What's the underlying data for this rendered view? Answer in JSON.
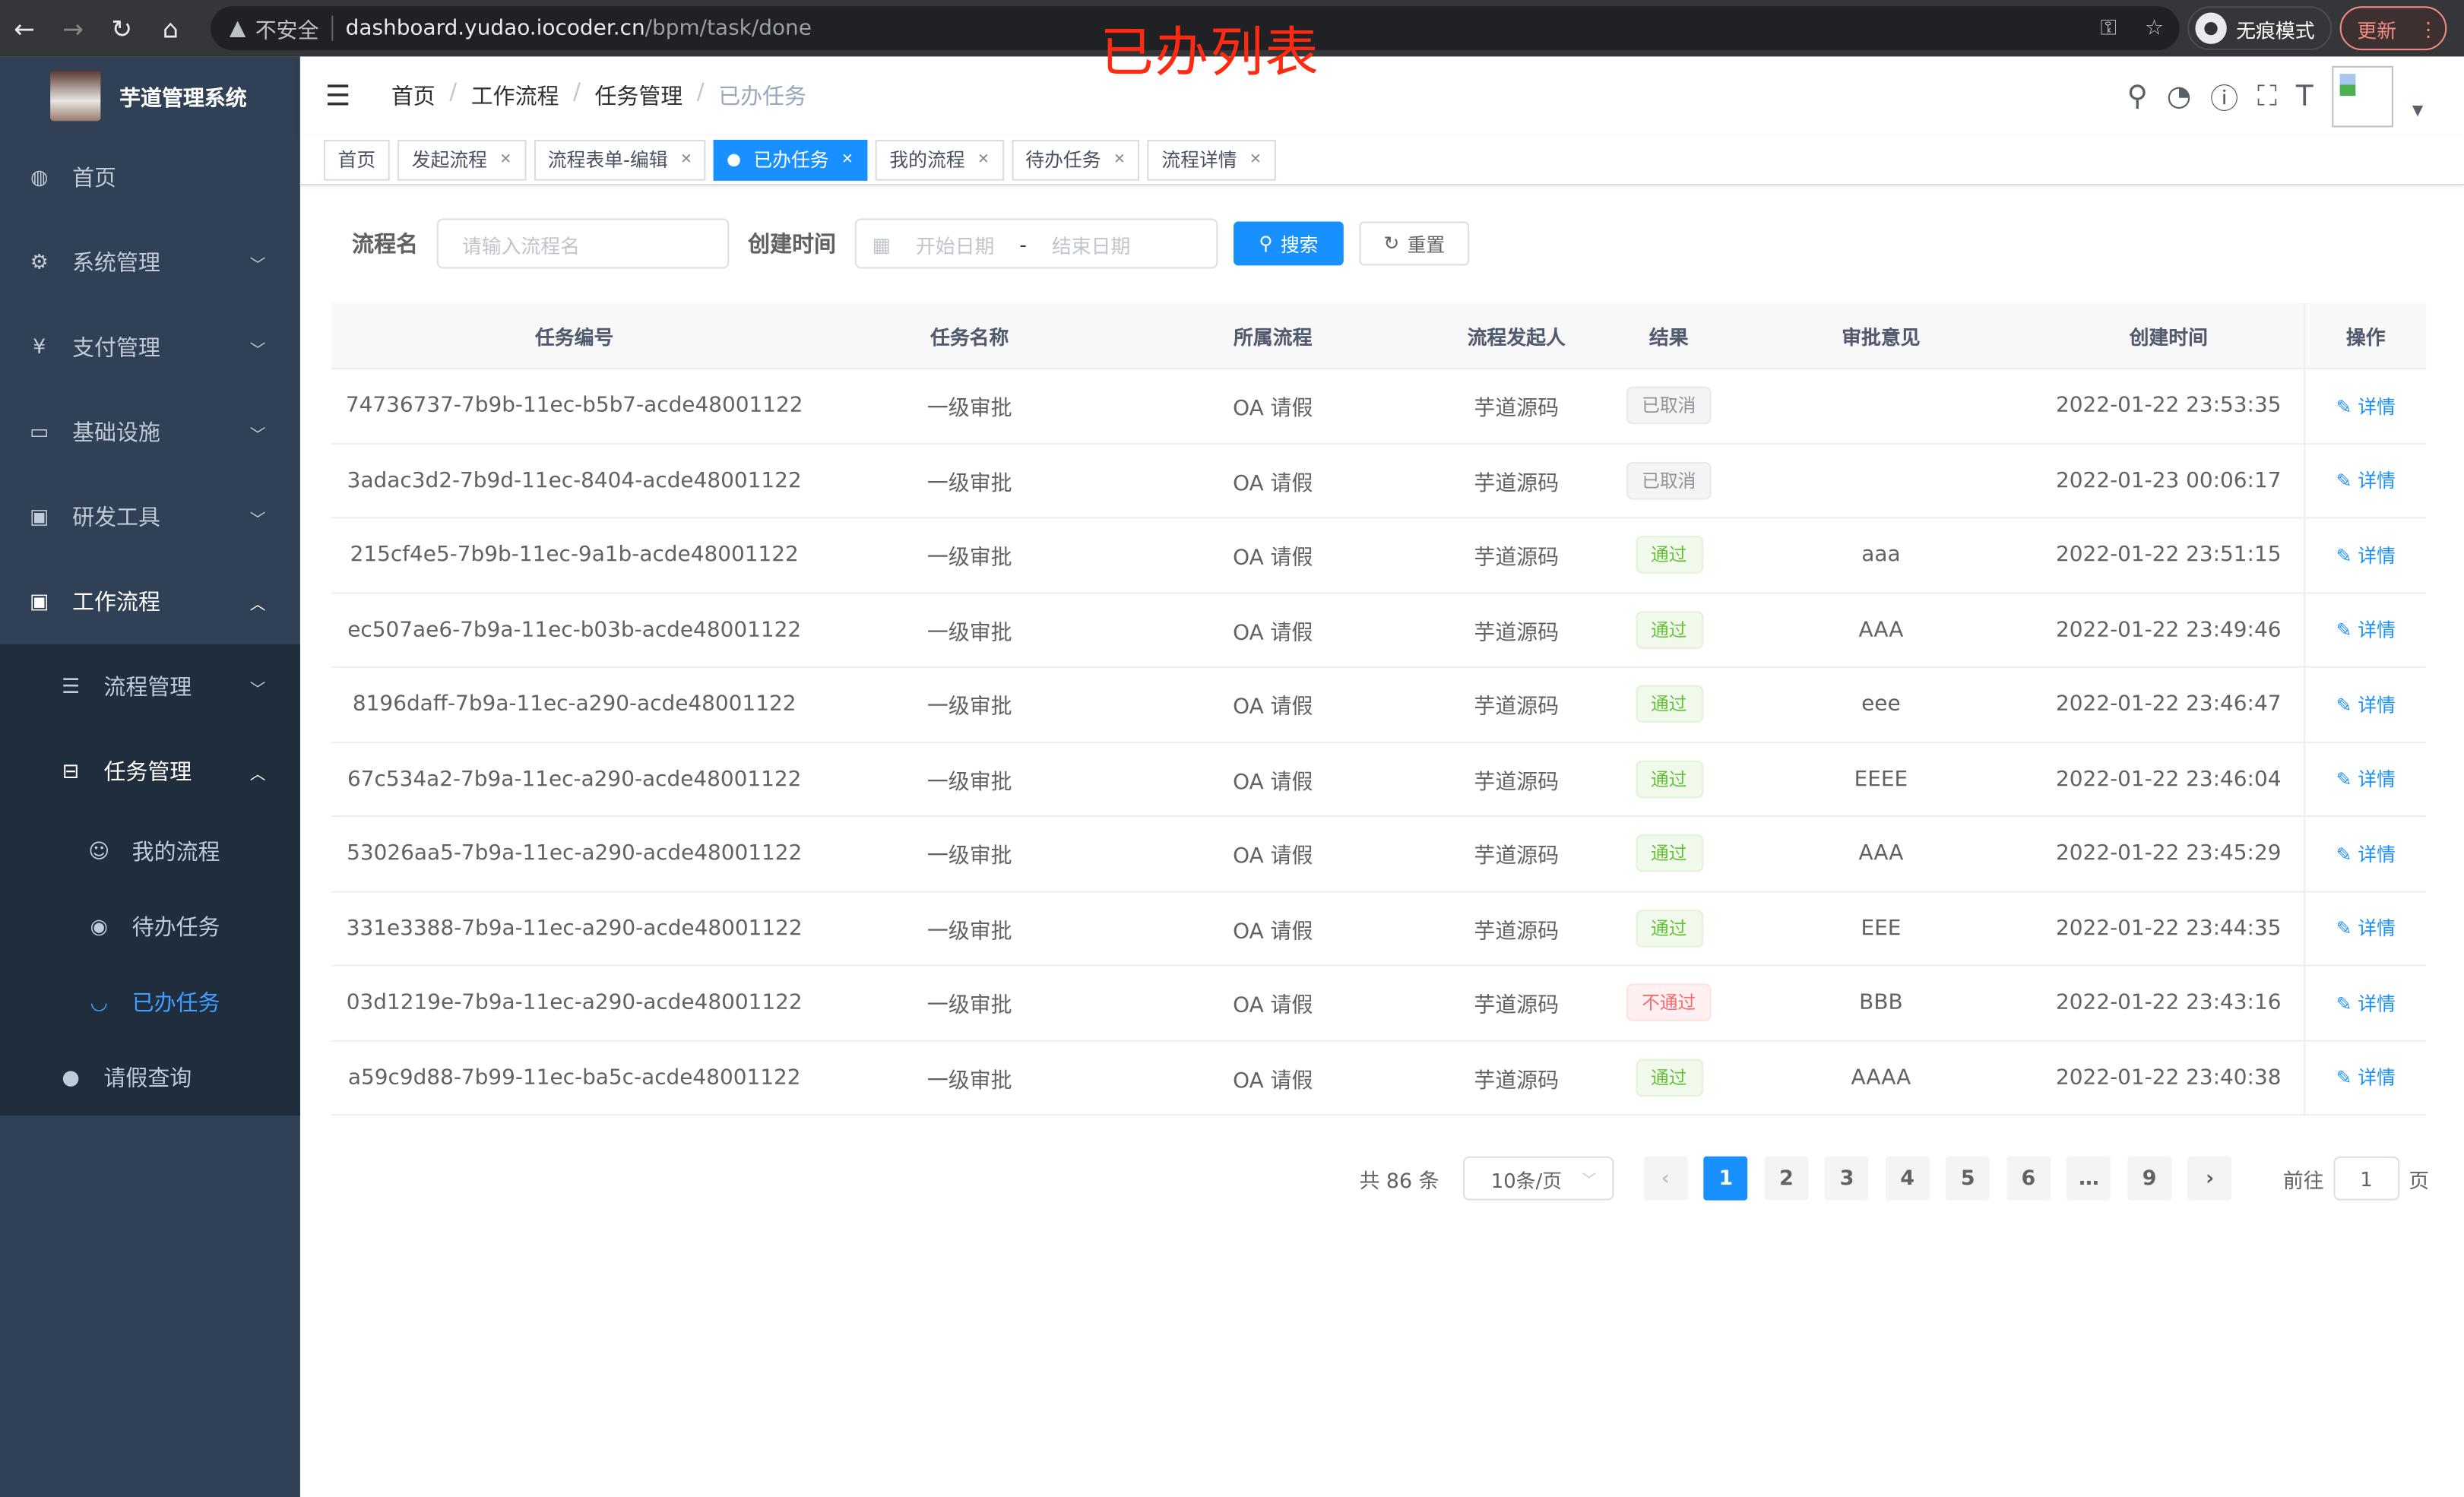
{
  "browser": {
    "url_host": "dashboard.yudao.iocoder.cn",
    "url_path": "/bpm/task/done",
    "insecure_label": "不安全",
    "incognito_label": "无痕模式",
    "update_label": "更新"
  },
  "annotation": "已办列表",
  "sidebar": {
    "title": "芋道管理系统",
    "items": [
      {
        "label": "首页",
        "icon": "dashboard-icon"
      },
      {
        "label": "系统管理",
        "icon": "gear-icon"
      },
      {
        "label": "支付管理",
        "icon": "yen-icon"
      },
      {
        "label": "基础设施",
        "icon": "monitor-icon"
      },
      {
        "label": "研发工具",
        "icon": "toolbox-icon"
      },
      {
        "label": "工作流程",
        "icon": "toolbox-icon"
      }
    ],
    "workflow_children": [
      {
        "label": "流程管理"
      },
      {
        "label": "任务管理"
      },
      {
        "label": "请假查询"
      }
    ],
    "task_children": [
      {
        "label": "我的流程"
      },
      {
        "label": "待办任务"
      },
      {
        "label": "已办任务"
      }
    ]
  },
  "breadcrumb": [
    "首页",
    "工作流程",
    "任务管理",
    "已办任务"
  ],
  "tags": [
    {
      "label": "首页"
    },
    {
      "label": "发起流程"
    },
    {
      "label": "流程表单-编辑"
    },
    {
      "label": "已办任务"
    },
    {
      "label": "我的流程"
    },
    {
      "label": "待办任务"
    },
    {
      "label": "流程详情"
    }
  ],
  "search": {
    "name_label": "流程名",
    "name_placeholder": "请输入流程名",
    "time_label": "创建时间",
    "start_placeholder": "开始日期",
    "range_sep": "-",
    "end_placeholder": "结束日期",
    "search_label": "搜索",
    "reset_label": "重置"
  },
  "table": {
    "headers": [
      "任务编号",
      "任务名称",
      "所属流程",
      "流程发起人",
      "结果",
      "审批意见",
      "创建时间",
      "操作"
    ],
    "action_label": "详情",
    "rows": [
      {
        "id": "74736737-7b9b-11ec-b5b7-acde48001122",
        "name": "一级审批",
        "process": "OA 请假",
        "starter": "芋道源码",
        "result": "已取消",
        "status": "cancel",
        "comment": "",
        "time": "2022-01-22 23:53:35"
      },
      {
        "id": "3adac3d2-7b9d-11ec-8404-acde48001122",
        "name": "一级审批",
        "process": "OA 请假",
        "starter": "芋道源码",
        "result": "已取消",
        "status": "cancel",
        "comment": "",
        "time": "2022-01-23 00:06:17"
      },
      {
        "id": "215cf4e5-7b9b-11ec-9a1b-acde48001122",
        "name": "一级审批",
        "process": "OA 请假",
        "starter": "芋道源码",
        "result": "通过",
        "status": "ok",
        "comment": "aaa",
        "time": "2022-01-22 23:51:15"
      },
      {
        "id": "ec507ae6-7b9a-11ec-b03b-acde48001122",
        "name": "一级审批",
        "process": "OA 请假",
        "starter": "芋道源码",
        "result": "通过",
        "status": "ok",
        "comment": "AAA",
        "time": "2022-01-22 23:49:46"
      },
      {
        "id": "8196daff-7b9a-11ec-a290-acde48001122",
        "name": "一级审批",
        "process": "OA 请假",
        "starter": "芋道源码",
        "result": "通过",
        "status": "ok",
        "comment": "eee",
        "time": "2022-01-22 23:46:47"
      },
      {
        "id": "67c534a2-7b9a-11ec-a290-acde48001122",
        "name": "一级审批",
        "process": "OA 请假",
        "starter": "芋道源码",
        "result": "通过",
        "status": "ok",
        "comment": "EEEE",
        "time": "2022-01-22 23:46:04"
      },
      {
        "id": "53026aa5-7b9a-11ec-a290-acde48001122",
        "name": "一级审批",
        "process": "OA 请假",
        "starter": "芋道源码",
        "result": "通过",
        "status": "ok",
        "comment": "AAA",
        "time": "2022-01-22 23:45:29"
      },
      {
        "id": "331e3388-7b9a-11ec-a290-acde48001122",
        "name": "一级审批",
        "process": "OA 请假",
        "starter": "芋道源码",
        "result": "通过",
        "status": "ok",
        "comment": "EEE",
        "time": "2022-01-22 23:44:35"
      },
      {
        "id": "03d1219e-7b9a-11ec-a290-acde48001122",
        "name": "一级审批",
        "process": "OA 请假",
        "starter": "芋道源码",
        "result": "不通过",
        "status": "no",
        "comment": "BBB",
        "time": "2022-01-22 23:43:16"
      },
      {
        "id": "a59c9d88-7b99-11ec-ba5c-acde48001122",
        "name": "一级审批",
        "process": "OA 请假",
        "starter": "芋道源码",
        "result": "通过",
        "status": "ok",
        "comment": "AAAA",
        "time": "2022-01-22 23:40:38"
      }
    ]
  },
  "pagination": {
    "total_label": "共 86 条",
    "page_size": "10条/页",
    "pages": [
      "1",
      "2",
      "3",
      "4",
      "5",
      "6",
      "…",
      "9"
    ],
    "current": "1",
    "goto_label": "前往",
    "goto_value": "1",
    "page_suffix": "页"
  },
  "colors": {
    "accent": "#1890ff",
    "sidebar": "#304156",
    "submenu": "#1f2d3d"
  }
}
